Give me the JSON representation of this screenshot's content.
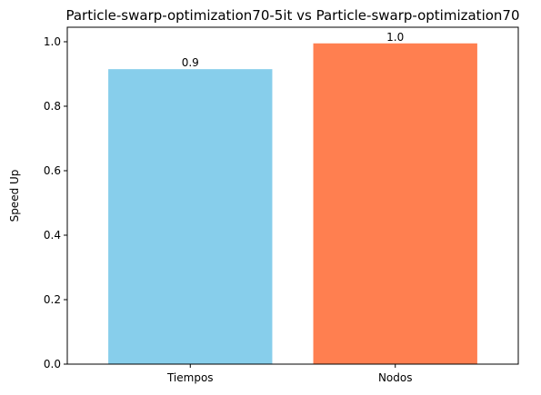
{
  "chart_data": {
    "type": "bar",
    "title": "Particle-swarp-optimization70-5it vs Particle-swarp-optimization70",
    "xlabel": "",
    "ylabel": "Speed Up",
    "ylim": [
      0,
      1.045
    ],
    "yticks": [
      "0.0",
      "0.2",
      "0.4",
      "0.6",
      "0.8",
      "1.0"
    ],
    "categories": [
      "Tiempos",
      "Nodos"
    ],
    "values": [
      0.915,
      0.995
    ],
    "value_labels": [
      "0.9",
      "1.0"
    ],
    "colors": [
      "#87CEEB",
      "#FF7F50"
    ],
    "grid": false,
    "legend": "none"
  }
}
